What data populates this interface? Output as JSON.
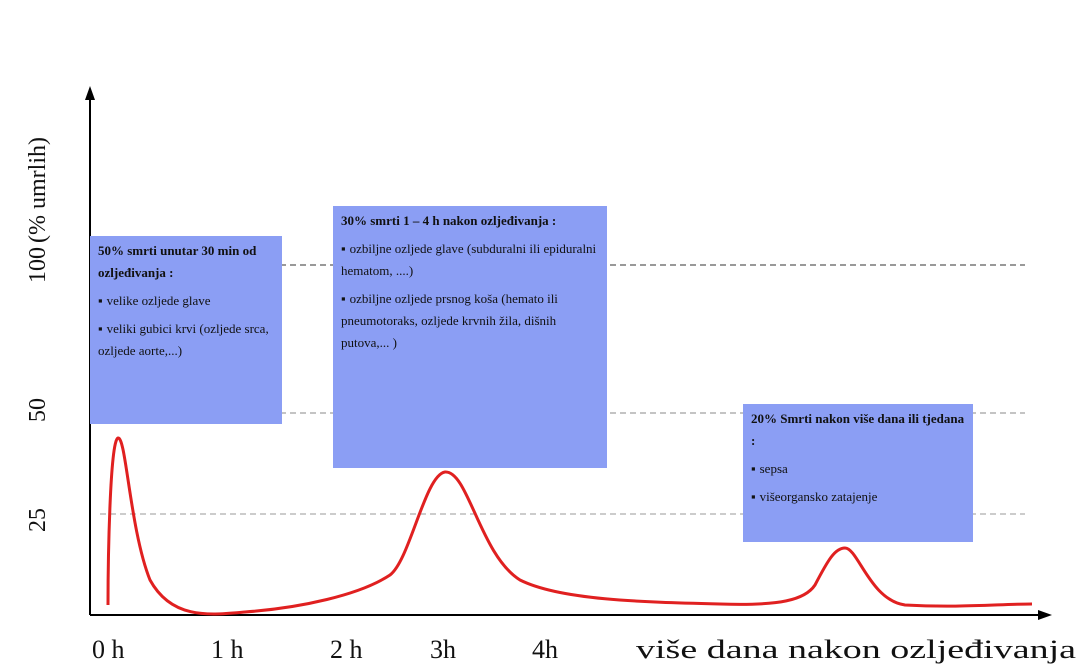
{
  "chart_data": {
    "type": "line",
    "ylabel": "(% umrlih)",
    "yticks": [
      "100",
      "50",
      "25"
    ],
    "xticks": [
      "0 h",
      "1 h",
      "2 h",
      "3h",
      "4h",
      "više dana nakon ozljeđivanja"
    ],
    "grid": "dashed horizontal lines at 100, 50 and 25",
    "line_color": "#e02020",
    "box_color": "#8b9ef4",
    "peaks": [
      {
        "x": "0 h",
        "y": 44
      },
      {
        "x": "3h",
        "y": 35
      },
      {
        "x": "više dana nakon ozljeđivanja",
        "y": 17
      }
    ]
  },
  "boxes": {
    "b1": {
      "title": "50% smrti unutar 30 min od ozljeđivanja :",
      "items": [
        "velike ozljede glave",
        "veliki gubici krvi (ozljede srca, ozljede aorte,...)"
      ]
    },
    "b2": {
      "title": "30% smrti 1 – 4 h nakon ozljeđivanja :",
      "items": [
        "ozbiljne ozljede glave (subduralni ili epiduralni hematom, ....)",
        "ozbiljne ozljede prsnog koša (hemato ili pneumotoraks, ozljede krvnih žila, dišnih putova,... )"
      ]
    },
    "b3": {
      "title": "20% Smrti nakon više dana ili tjedana :",
      "items": [
        "sepsa",
        "višeorgansko zatajenje"
      ]
    }
  }
}
